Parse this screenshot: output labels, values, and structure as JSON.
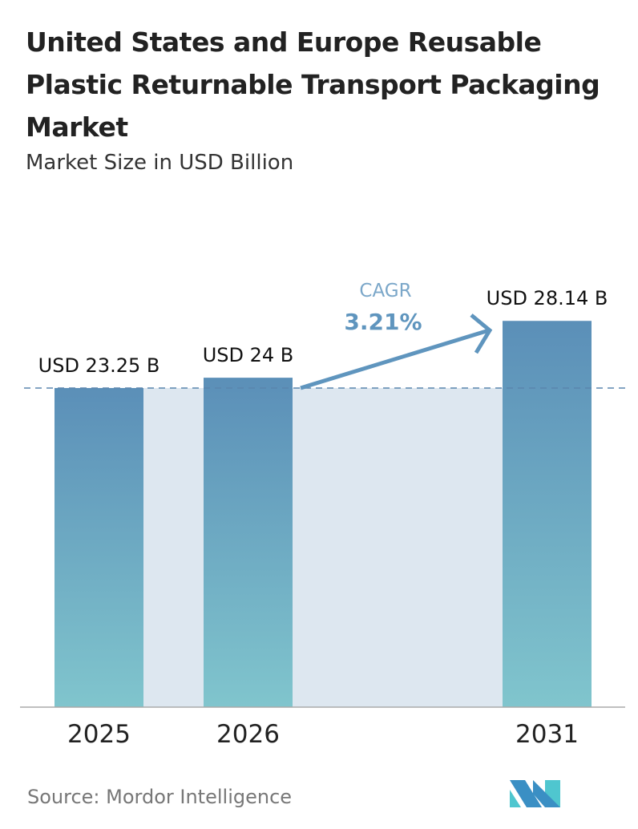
{
  "chart_data": {
    "type": "bar",
    "title": "United States and Europe Reusable Plastic Returnable Transport Packaging Market",
    "subtitle": "Market Size in USD Billion",
    "categories": [
      "2025",
      "2026",
      "2031"
    ],
    "values": [
      23.25,
      24,
      28.14
    ],
    "data_labels": [
      "USD 23.25 B",
      "USD 24 B",
      "USD 28.14 B"
    ],
    "ylim": [
      0,
      30
    ],
    "grid": false,
    "annotation": {
      "label": "CAGR",
      "value": "3.21%"
    },
    "colors": {
      "bar_top": "#5b8fb8",
      "bar_bottom": "#7fc4cc",
      "shade": "#dde7f0",
      "accent": "#5f95be"
    }
  },
  "source": "Source:  Mordor Intelligence",
  "logo": {
    "text": "Mordor Intelligence"
  }
}
